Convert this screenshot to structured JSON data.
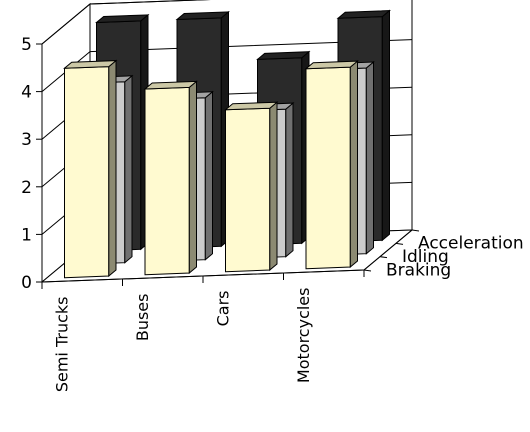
{
  "chart_data": {
    "type": "bar",
    "style": "3d-clustered",
    "categories": [
      "Semi Trucks",
      "Buses",
      "Cars",
      "Motorcycles"
    ],
    "series": [
      {
        "name": "Braking",
        "values": [
          4.4,
          3.9,
          3.4,
          4.2
        ],
        "color": "#fffad0"
      },
      {
        "name": "Idling",
        "values": [
          3.8,
          3.4,
          3.1,
          3.9
        ],
        "color": "#cccccc"
      },
      {
        "name": "Acceleration",
        "values": [
          4.8,
          4.8,
          3.9,
          4.7
        ],
        "color": "#2a2a2a"
      }
    ],
    "ylim": [
      0,
      5
    ],
    "yticks": [
      "0",
      "1",
      "2",
      "3",
      "4",
      "5"
    ],
    "grid": true,
    "title": "",
    "xlabel": "",
    "ylabel": ""
  }
}
